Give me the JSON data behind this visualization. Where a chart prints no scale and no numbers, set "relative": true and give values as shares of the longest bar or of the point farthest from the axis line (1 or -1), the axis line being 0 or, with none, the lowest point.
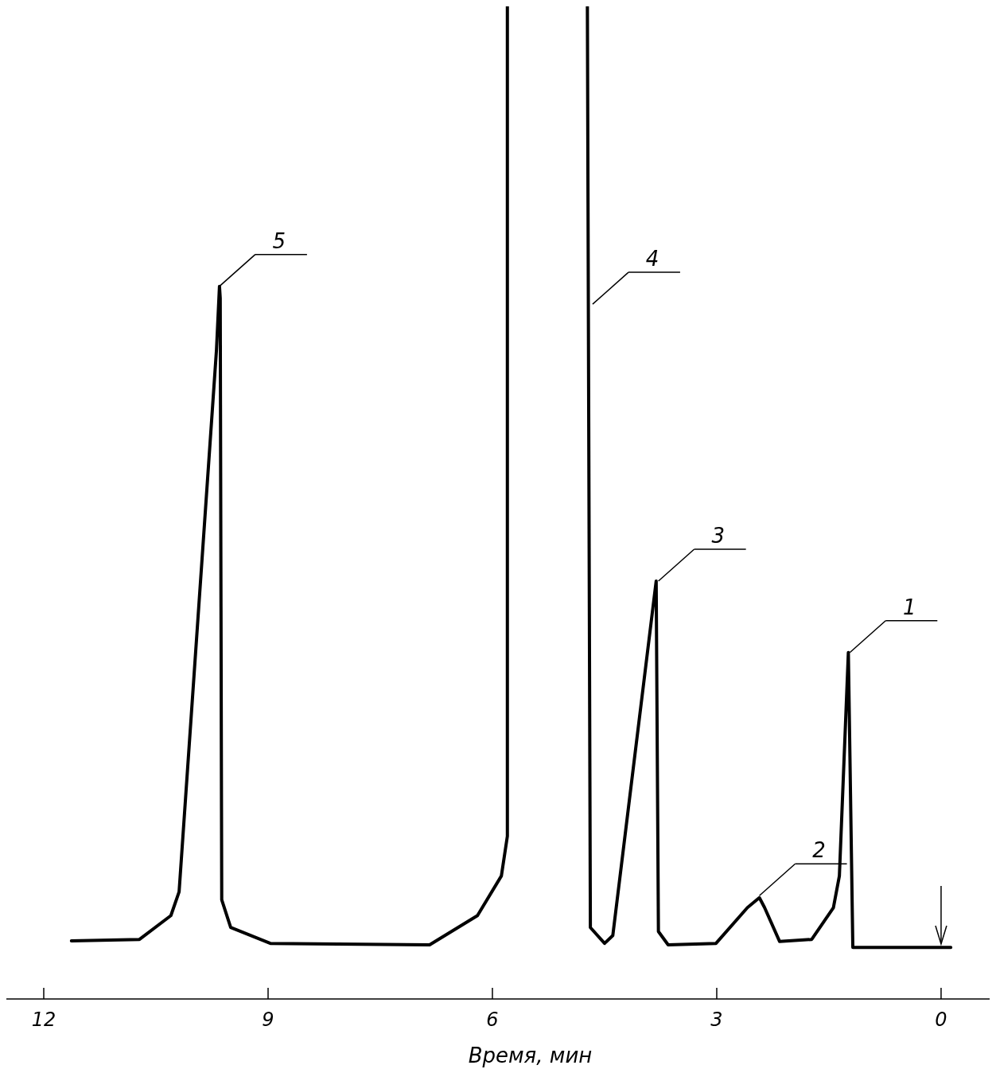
{
  "chart_data": {
    "type": "line",
    "relative": true,
    "xlabel": "Время, мин",
    "xlim": [
      12.5,
      -0.66
    ],
    "xticks": [
      12,
      9,
      6,
      3,
      0
    ],
    "series": [
      {
        "color": "#000000",
        "x": [
          11.63,
          10.72,
          10.3,
          10.19,
          9.69,
          9.65,
          9.64,
          9.62,
          9.5,
          8.97,
          6.84,
          6.2,
          5.88,
          5.8,
          5.8
        ],
        "values": [
          0.0585,
          0.06,
          0.084,
          0.108,
          0.654,
          0.718,
          0.706,
          0.1,
          0.072,
          0.056,
          0.0545,
          0.084,
          0.124,
          0.164,
          1.0
        ]
      },
      {
        "color": "#000000",
        "x": [
          4.73,
          4.69,
          4.5,
          4.39,
          3.81,
          3.78,
          3.65,
          3.01,
          2.59,
          2.43,
          2.36,
          2.16,
          1.73,
          1.44,
          1.36,
          1.24,
          1.18,
          -0.13
        ],
        "values": [
          1.0,
          0.072,
          0.056,
          0.064,
          0.421,
          0.068,
          0.0545,
          0.056,
          0.092,
          0.102,
          0.092,
          0.058,
          0.06,
          0.092,
          0.124,
          0.349,
          0.052,
          0.052
        ]
      }
    ],
    "annotations": [
      {
        "text": "1",
        "x": 1.22,
        "y": 0.349
      },
      {
        "text": "2",
        "x": 2.43,
        "y": 0.104
      },
      {
        "text": "3",
        "x": 3.78,
        "y": 0.421
      },
      {
        "text": "4",
        "x": 4.66,
        "y": 0.7
      },
      {
        "text": "5",
        "x": 9.65,
        "y": 0.718
      }
    ],
    "marker": "none",
    "line_style": "solid",
    "grid": false
  }
}
